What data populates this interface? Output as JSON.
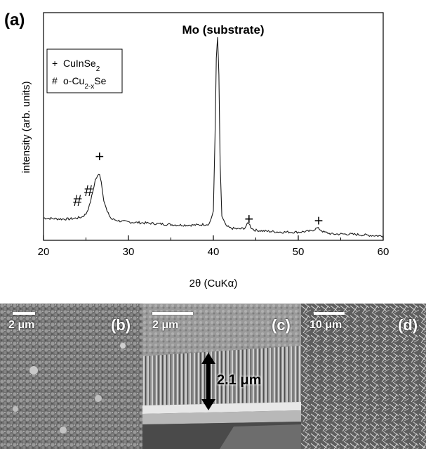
{
  "figure": {
    "panel_a_label": "(a)"
  },
  "chart_data": {
    "type": "line",
    "title": "",
    "xlabel": "2θ (CuKα)",
    "ylabel": "intensity (arb. units)",
    "xlim": [
      20,
      60
    ],
    "ylim": [
      0,
      1.0
    ],
    "xticks": [
      20,
      30,
      40,
      50,
      60
    ],
    "yticks_shown": false,
    "grid": false,
    "legend": {
      "placement": "top-left",
      "entries": [
        {
          "symbol": "+",
          "label": "CuInSe",
          "sub": "2",
          "tail": ""
        },
        {
          "symbol": "#",
          "label": "o-Cu",
          "sub": "2-x",
          "tail": "Se"
        }
      ]
    },
    "annotations": [
      {
        "text": "Mo (substrate)",
        "x": 40.5
      },
      {
        "text": "+",
        "x": 26.6,
        "y": 0.37
      },
      {
        "text": "+",
        "x": 44.2,
        "y": 0.06
      },
      {
        "text": "+",
        "x": 52.4,
        "y": 0.05
      },
      {
        "text": "#",
        "x": 25.3,
        "y": 0.2
      },
      {
        "text": "#",
        "x": 24.0,
        "y": 0.15
      }
    ],
    "series": [
      {
        "x": [
          20,
          22,
          23,
          24,
          24.5,
          25,
          25.4,
          25.8,
          26.1,
          26.4,
          26.6,
          26.8,
          27.1,
          27.5,
          28,
          29,
          30,
          32,
          34,
          36,
          38,
          39.5,
          40.0,
          40.2,
          40.35,
          40.5,
          40.65,
          40.8,
          41.0,
          41.5,
          42,
          43,
          43.7,
          44.0,
          44.2,
          44.4,
          44.8,
          46,
          48,
          50,
          51.5,
          52.2,
          52.5,
          53,
          54,
          56,
          58,
          60
        ],
        "y": [
          0.09,
          0.085,
          0.085,
          0.09,
          0.095,
          0.11,
          0.15,
          0.22,
          0.28,
          0.3,
          0.31,
          0.27,
          0.18,
          0.12,
          0.085,
          0.075,
          0.07,
          0.065,
          0.06,
          0.055,
          0.055,
          0.06,
          0.12,
          0.5,
          0.88,
          0.99,
          0.8,
          0.35,
          0.1,
          0.05,
          0.04,
          0.035,
          0.04,
          0.06,
          0.065,
          0.045,
          0.03,
          0.025,
          0.02,
          0.02,
          0.025,
          0.04,
          0.035,
          0.02,
          0.01,
          0.01,
          0.005,
          0.0
        ]
      }
    ]
  },
  "sem_panels": {
    "b": {
      "label": "(b)",
      "scale": "2 μm"
    },
    "c": {
      "label": "(c)",
      "scale": "2 μm",
      "thickness": "2.1 μm"
    },
    "d": {
      "label": "(d)",
      "scale": "10 μm"
    }
  }
}
